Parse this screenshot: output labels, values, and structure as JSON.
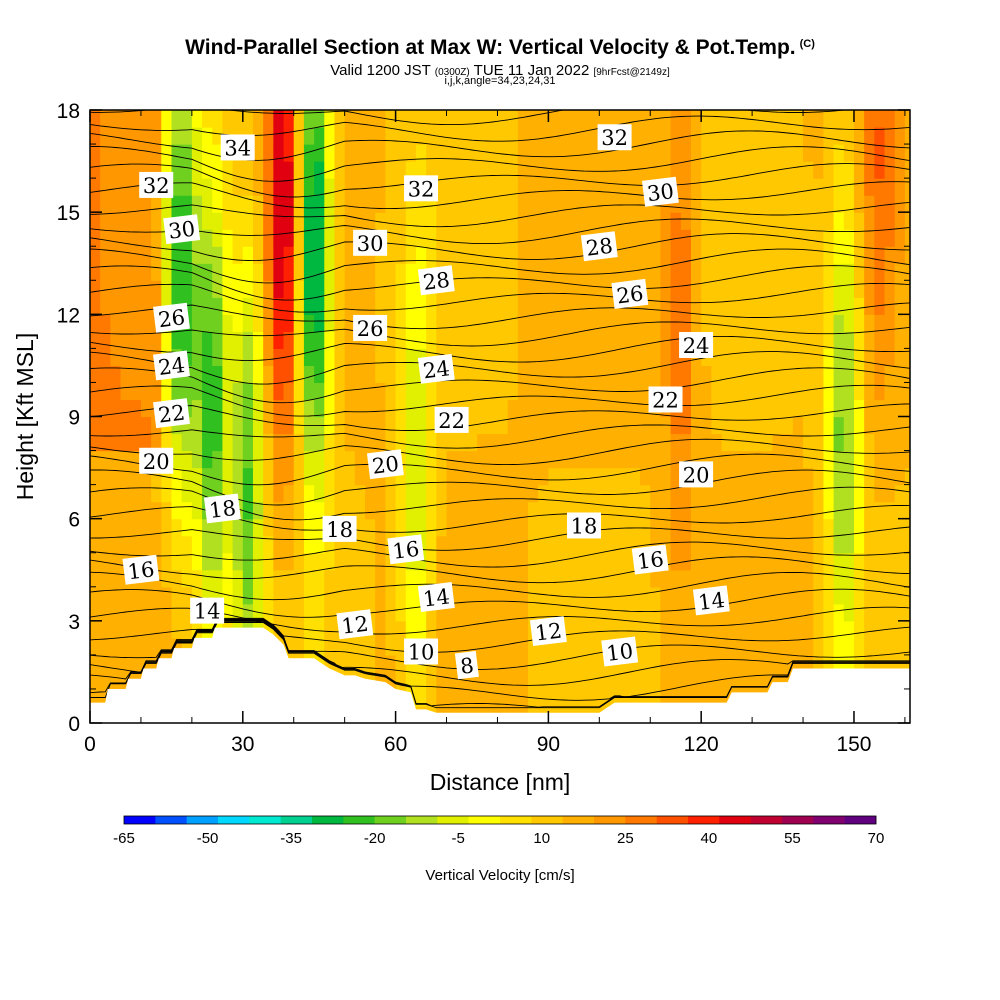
{
  "title": "Wind-Parallel Section at Max W: Vertical Velocity & Pot.Temp.",
  "title_mark": "(C)",
  "subtitle_a": "Valid 1200 JST",
  "subtitle_b": "(0300Z)",
  "subtitle_c": "TUE 11 Jan 2022",
  "subtitle_d": "[9hrFcst@2149z]",
  "subtitle2": "i,j,k,angle=34,23,24,31",
  "chart_data": {
    "type": "heatmap",
    "title": "Wind-Parallel Section at Max W: Vertical Velocity & Pot.Temp.",
    "xlabel": "Distance [nm]",
    "ylabel": "Height [Kft MSL]",
    "xlim": [
      0,
      161
    ],
    "ylim": [
      0,
      18
    ],
    "x_ticks": [
      0,
      30,
      60,
      90,
      120,
      150
    ],
    "y_ticks": [
      0,
      3,
      6,
      9,
      12,
      15,
      18
    ],
    "colorbar": {
      "label": "Vertical Velocity [cm/s]",
      "tick_labels": [
        "-65",
        "-50",
        "-35",
        "-20",
        "-5",
        "10",
        "25",
        "40",
        "55",
        "70"
      ],
      "colors": [
        "#0000ff",
        "#0050ff",
        "#00a0ff",
        "#00d8ff",
        "#00e8d0",
        "#00d090",
        "#00b840",
        "#30c020",
        "#70d020",
        "#b0e020",
        "#e0f000",
        "#ffff00",
        "#ffe000",
        "#ffc800",
        "#ffb000",
        "#ff9800",
        "#ff7800",
        "#ff5000",
        "#ff2000",
        "#e00010",
        "#c00030",
        "#a00050",
        "#800070",
        "#600080"
      ]
    },
    "contour_labels": [
      {
        "text": "34",
        "x": 29,
        "y": 16.9
      },
      {
        "text": "32",
        "x": 13,
        "y": 15.8
      },
      {
        "text": "32",
        "x": 65,
        "y": 15.7
      },
      {
        "text": "32",
        "x": 103,
        "y": 17.2
      },
      {
        "text": "30",
        "x": 18,
        "y": 14.5
      },
      {
        "text": "30",
        "x": 55,
        "y": 14.1
      },
      {
        "text": "30",
        "x": 112,
        "y": 15.6
      },
      {
        "text": "28",
        "x": 68,
        "y": 13.0
      },
      {
        "text": "28",
        "x": 100,
        "y": 14.0
      },
      {
        "text": "26",
        "x": 16,
        "y": 11.9
      },
      {
        "text": "26",
        "x": 55,
        "y": 11.6
      },
      {
        "text": "26",
        "x": 106,
        "y": 12.6
      },
      {
        "text": "24",
        "x": 16,
        "y": 10.5
      },
      {
        "text": "24",
        "x": 68,
        "y": 10.4
      },
      {
        "text": "24",
        "x": 119,
        "y": 11.1
      },
      {
        "text": "22",
        "x": 16,
        "y": 9.1
      },
      {
        "text": "22",
        "x": 71,
        "y": 8.9
      },
      {
        "text": "22",
        "x": 113,
        "y": 9.5
      },
      {
        "text": "20",
        "x": 13,
        "y": 7.7
      },
      {
        "text": "20",
        "x": 58,
        "y": 7.6
      },
      {
        "text": "20",
        "x": 119,
        "y": 7.3
      },
      {
        "text": "18",
        "x": 26,
        "y": 6.3
      },
      {
        "text": "18",
        "x": 49,
        "y": 5.7
      },
      {
        "text": "18",
        "x": 97,
        "y": 5.8
      },
      {
        "text": "16",
        "x": 10,
        "y": 4.5
      },
      {
        "text": "16",
        "x": 62,
        "y": 5.1
      },
      {
        "text": "16",
        "x": 110,
        "y": 4.8
      },
      {
        "text": "14",
        "x": 23,
        "y": 3.3
      },
      {
        "text": "14",
        "x": 68,
        "y": 3.7
      },
      {
        "text": "14",
        "x": 122,
        "y": 3.6
      },
      {
        "text": "12",
        "x": 52,
        "y": 2.9
      },
      {
        "text": "12",
        "x": 90,
        "y": 2.7
      },
      {
        "text": "10",
        "x": 65,
        "y": 2.1
      },
      {
        "text": "10",
        "x": 104,
        "y": 2.1
      },
      {
        "text": "8",
        "x": 74,
        "y": 1.7
      }
    ],
    "w_features": [
      {
        "x": 18,
        "y": 13,
        "w": -25
      },
      {
        "x": 24,
        "y": 9,
        "w": -25
      },
      {
        "x": 31,
        "y": 7,
        "w": -22
      },
      {
        "x": 38,
        "y": 15,
        "w": 45
      },
      {
        "x": 44,
        "y": 14,
        "w": -42
      },
      {
        "x": 64,
        "y": 7,
        "w": -12
      },
      {
        "x": 116,
        "y": 12,
        "w": 28
      },
      {
        "x": 148,
        "y": 9,
        "w": -20
      },
      {
        "x": 155,
        "y": 17,
        "w": 25
      }
    ]
  }
}
